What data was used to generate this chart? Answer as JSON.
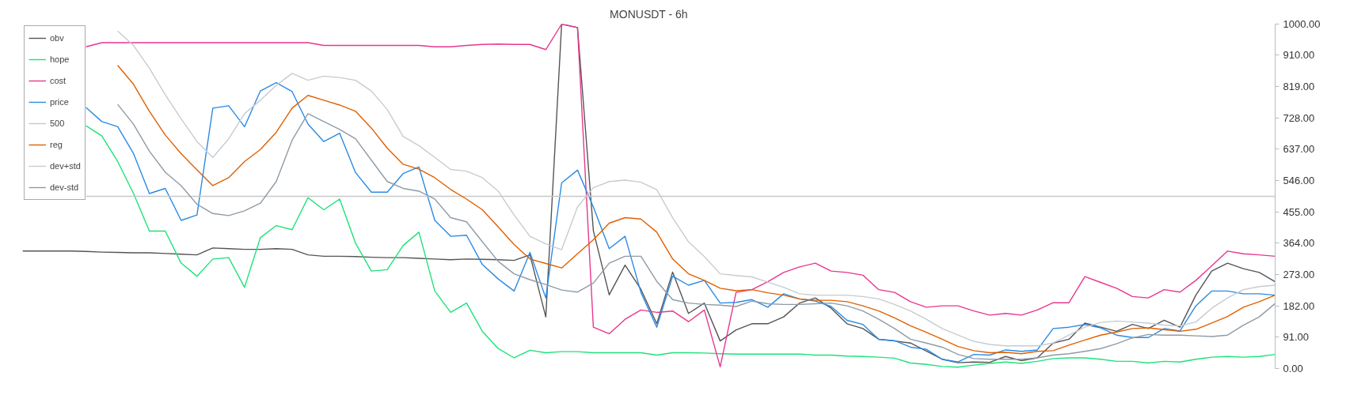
{
  "chart_data": {
    "type": "line",
    "title": "MONUSDT - 6h",
    "categories": [
      null,
      null,
      null,
      null,
      null,
      null,
      null,
      null,
      null,
      null,
      null,
      null,
      null,
      null,
      null,
      null,
      null,
      null,
      null,
      null,
      null,
      null,
      null,
      null,
      null,
      null,
      null,
      null,
      null,
      null,
      null,
      null,
      null,
      null,
      null,
      null,
      null,
      null,
      null,
      null,
      null,
      null,
      null,
      null,
      null,
      null,
      null,
      null,
      null,
      null,
      null,
      null,
      null,
      null,
      null,
      null,
      null,
      null,
      null,
      null,
      null,
      null,
      null,
      null,
      null,
      null,
      null,
      null,
      null,
      null,
      null,
      null,
      null,
      null,
      null,
      null,
      null,
      null,
      null,
      null
    ],
    "series": [
      {
        "name": "obv",
        "color": "#555555",
        "values": [
          341,
          341,
          341,
          341,
          340,
          338,
          337,
          336,
          336,
          334,
          332,
          330,
          350,
          348,
          346,
          346,
          348,
          346,
          330,
          326,
          326,
          325,
          323,
          322,
          322,
          320,
          318,
          316,
          318,
          317,
          316,
          314,
          330,
          150,
          1000,
          990,
          400,
          214,
          300,
          230,
          130,
          280,
          160,
          190,
          80,
          112,
          130,
          130,
          150,
          190,
          205,
          175,
          130,
          116,
          85,
          80,
          74,
          51,
          27,
          17,
          19,
          18,
          35,
          23,
          31,
          74,
          85,
          132,
          120,
          108,
          128,
          116,
          140,
          120,
          213,
          283,
          306,
          290,
          279,
          252
        ]
      },
      {
        "name": "hope",
        "color": "#1de27a",
        "values": [
          null,
          null,
          null,
          null,
          705,
          675,
          601,
          508,
          399,
          399,
          306,
          268,
          318,
          322,
          236,
          380,
          415,
          403,
          496,
          461,
          492,
          364,
          283,
          287,
          357,
          396,
          225,
          163,
          190,
          108,
          58,
          31,
          53,
          46,
          49,
          49,
          46,
          46,
          46,
          46,
          39,
          46,
          46,
          45,
          43,
          42,
          42,
          42,
          42,
          42,
          39,
          39,
          36,
          35,
          33,
          30,
          16,
          12,
          6,
          4,
          10,
          15,
          19,
          15,
          21,
          29,
          31,
          31,
          27,
          21,
          21,
          16,
          21,
          19,
          27,
          33,
          35,
          33,
          35,
          41
        ]
      },
      {
        "name": "cost",
        "color": "#e8368f",
        "values": [
          null,
          null,
          null,
          null,
          934,
          946,
          946,
          946,
          946,
          946,
          946,
          946,
          946,
          946,
          946,
          946,
          946,
          946,
          946,
          938,
          938,
          938,
          938,
          938,
          938,
          938,
          934,
          934,
          938,
          941,
          942,
          941,
          941,
          926,
          1000,
          990,
          120,
          101,
          143,
          170,
          163,
          167,
          136,
          170,
          5,
          221,
          229,
          252,
          279,
          295,
          306,
          283,
          279,
          271,
          229,
          221,
          194,
          178,
          182,
          182,
          167,
          155,
          160,
          155,
          170,
          191,
          191,
          267,
          250,
          233,
          209,
          205,
          229,
          222,
          256,
          298,
          341,
          333,
          330,
          326
        ]
      },
      {
        "name": "price",
        "color": "#2a8ae6",
        "values": [
          null,
          null,
          null,
          null,
          758,
          717,
          702,
          624,
          508,
          523,
          430,
          446,
          756,
          763,
          702,
          806,
          830,
          804,
          710,
          659,
          683,
          569,
          512,
          512,
          566,
          585,
          430,
          384,
          387,
          302,
          260,
          225,
          337,
          205,
          539,
          576,
          469,
          348,
          384,
          221,
          120,
          268,
          242,
          256,
          190,
          192,
          200,
          178,
          217,
          202,
          196,
          180,
          140,
          128,
          85,
          81,
          62,
          56,
          27,
          19,
          41,
          39,
          54,
          50,
          54,
          116,
          120,
          128,
          118,
          97,
          90,
          90,
          116,
          109,
          182,
          225,
          225,
          217,
          217,
          213
        ]
      },
      {
        "name": "500",
        "color": "#c8c8c8",
        "values": [
          null,
          null,
          null,
          null,
          500,
          500,
          500,
          500,
          500,
          500,
          500,
          500,
          500,
          500,
          500,
          500,
          500,
          500,
          500,
          500,
          500,
          500,
          500,
          500,
          500,
          500,
          500,
          500,
          500,
          500,
          500,
          500,
          500,
          500,
          500,
          500,
          500,
          500,
          500,
          500,
          500,
          500,
          500,
          500,
          500,
          500,
          500,
          500,
          500,
          500,
          500,
          500,
          500,
          500,
          500,
          500,
          500,
          500,
          500,
          500,
          500,
          500,
          500,
          500,
          500,
          500,
          500,
          500,
          500,
          500,
          500,
          500,
          500,
          500,
          500,
          500,
          500,
          500,
          500,
          500
        ]
      },
      {
        "name": "reg",
        "color": "#e06000",
        "values": [
          null,
          null,
          null,
          null,
          null,
          null,
          880,
          825,
          747,
          678,
          624,
          577,
          531,
          554,
          601,
          636,
          686,
          756,
          793,
          779,
          765,
          747,
          698,
          640,
          593,
          579,
          554,
          520,
          492,
          461,
          411,
          360,
          318,
          305,
          292,
          333,
          374,
          422,
          438,
          434,
          396,
          318,
          275,
          256,
          233,
          226,
          229,
          220,
          213,
          202,
          198,
          198,
          194,
          182,
          167,
          147,
          124,
          105,
          85,
          64,
          52,
          46,
          47,
          43,
          50,
          52,
          68,
          83,
          97,
          106,
          116,
          118,
          113,
          108,
          114,
          132,
          151,
          178,
          194,
          213
        ]
      },
      {
        "name": "dev+std",
        "color": "#c5ccd2",
        "values": [
          null,
          null,
          null,
          null,
          null,
          null,
          980,
          938,
          872,
          795,
          725,
          659,
          613,
          667,
          740,
          779,
          822,
          857,
          837,
          849,
          845,
          837,
          806,
          752,
          674,
          647,
          613,
          578,
          573,
          554,
          515,
          446,
          384,
          362,
          345,
          469,
          525,
          543,
          547,
          541,
          519,
          438,
          368,
          325,
          275,
          270,
          266,
          251,
          236,
          217,
          213,
          213,
          213,
          209,
          202,
          186,
          167,
          143,
          116,
          97,
          79,
          70,
          66,
          66,
          66,
          74,
          97,
          120,
          134,
          138,
          135,
          132,
          126,
          124,
          135,
          175,
          205,
          229,
          238,
          242
        ]
      },
      {
        "name": "dev-std",
        "color": "#8f9ba6",
        "values": [
          null,
          null,
          null,
          null,
          null,
          null,
          767,
          709,
          631,
          570,
          531,
          477,
          450,
          444,
          458,
          480,
          543,
          663,
          740,
          717,
          694,
          667,
          605,
          543,
          523,
          515,
          492,
          438,
          426,
          368,
          311,
          275,
          258,
          244,
          228,
          222,
          248,
          306,
          326,
          326,
          253,
          200,
          190,
          186,
          184,
          180,
          196,
          188,
          186,
          186,
          188,
          190,
          182,
          167,
          143,
          116,
          85,
          74,
          62,
          41,
          29,
          27,
          27,
          27,
          31,
          39,
          43,
          50,
          58,
          72,
          89,
          99,
          97,
          97,
          95,
          93,
          97,
          126,
          150,
          189
        ]
      }
    ],
    "ylim": [
      0,
      1000
    ],
    "yticks": [
      {
        "value": 0,
        "label": "0.00"
      },
      {
        "value": 91,
        "label": "91.00"
      },
      {
        "value": 182,
        "label": "182.00"
      },
      {
        "value": 273,
        "label": "273.00"
      },
      {
        "value": 364,
        "label": "364.00"
      },
      {
        "value": 455,
        "label": "455.00"
      },
      {
        "value": 546,
        "label": "546.00"
      },
      {
        "value": 637,
        "label": "637.00"
      },
      {
        "value": 728,
        "label": "728.00"
      },
      {
        "value": 819,
        "label": "819.00"
      },
      {
        "value": 910,
        "label": "910.00"
      },
      {
        "value": 1000,
        "label": "1000.00"
      }
    ],
    "tick_labels": "y",
    "grid": false,
    "legend": "top left",
    "marker": "none",
    "line_style": "solid"
  }
}
